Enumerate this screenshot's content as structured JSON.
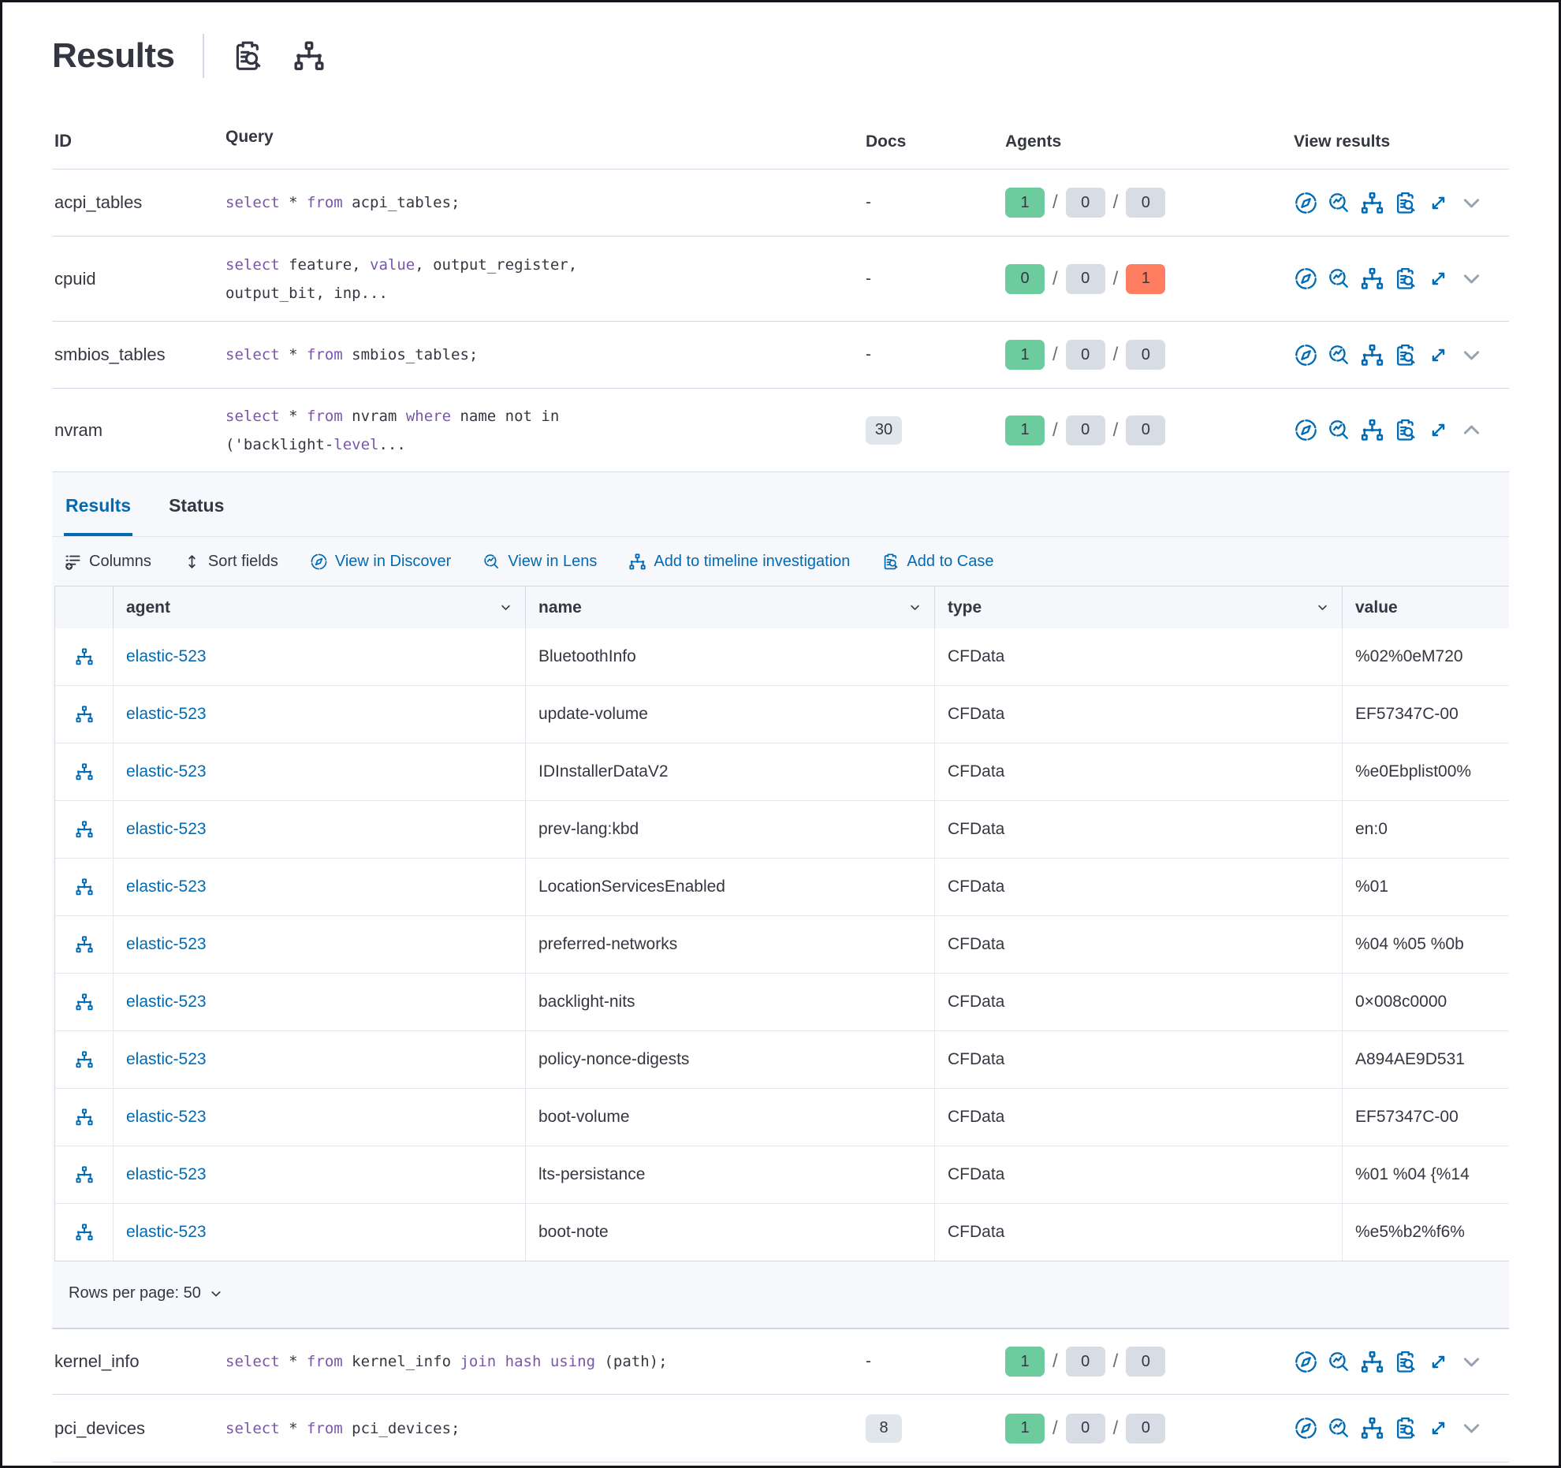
{
  "header": {
    "title": "Results",
    "icons": [
      {
        "name": "inspect-icon"
      },
      {
        "name": "node-tree-icon"
      }
    ]
  },
  "colors": {
    "accent_blue": "#006bb4",
    "keyword_purple": "#7957a8",
    "success_green": "#6dcc9e",
    "neutral_gray": "#d8dce5",
    "danger_red": "#ff7e62",
    "text_dark": "#343741"
  },
  "table": {
    "columns": {
      "id": "ID",
      "query": "Query",
      "docs": "Docs",
      "agents": "Agents",
      "view": "View results"
    },
    "agents_separator": "/",
    "rows_top": [
      {
        "id": "acpi_tables",
        "query": [
          [
            {
              "t": "select",
              "kw": true
            },
            {
              "t": " * "
            },
            {
              "t": "from",
              "kw": true
            },
            {
              "t": " acpi_tables;"
            }
          ]
        ],
        "docs": {
          "text": "-",
          "badge": false
        },
        "agents": [
          {
            "v": "1",
            "c": "ok"
          },
          {
            "v": "0",
            "c": "na"
          },
          {
            "v": "0",
            "c": "na"
          }
        ],
        "chevron": "down"
      },
      {
        "id": "cpuid",
        "query": [
          [
            {
              "t": "select",
              "kw": true
            },
            {
              "t": " feature, "
            },
            {
              "t": "value",
              "kw": true
            },
            {
              "t": ", output_register,"
            }
          ],
          [
            {
              "t": "output_bit, inp..."
            }
          ]
        ],
        "docs": {
          "text": "-",
          "badge": false
        },
        "agents": [
          {
            "v": "0",
            "c": "ok"
          },
          {
            "v": "0",
            "c": "na"
          },
          {
            "v": "1",
            "c": "fail"
          }
        ],
        "chevron": "down"
      },
      {
        "id": "smbios_tables",
        "query": [
          [
            {
              "t": "select",
              "kw": true
            },
            {
              "t": " * "
            },
            {
              "t": "from",
              "kw": true
            },
            {
              "t": " smbios_tables;"
            }
          ]
        ],
        "docs": {
          "text": "-",
          "badge": false
        },
        "agents": [
          {
            "v": "1",
            "c": "ok"
          },
          {
            "v": "0",
            "c": "na"
          },
          {
            "v": "0",
            "c": "na"
          }
        ],
        "chevron": "down"
      },
      {
        "id": "nvram",
        "query": [
          [
            {
              "t": "select",
              "kw": true
            },
            {
              "t": " * "
            },
            {
              "t": "from",
              "kw": true
            },
            {
              "t": " nvram "
            },
            {
              "t": "where",
              "kw": true
            },
            {
              "t": " name not in"
            }
          ],
          [
            {
              "t": "('backlight-"
            },
            {
              "t": "level",
              "kw": true
            },
            {
              "t": "..."
            }
          ]
        ],
        "docs": {
          "text": "30",
          "badge": true
        },
        "agents": [
          {
            "v": "1",
            "c": "ok"
          },
          {
            "v": "0",
            "c": "na"
          },
          {
            "v": "0",
            "c": "na"
          }
        ],
        "chevron": "up"
      }
    ],
    "rows_bottom": [
      {
        "id": "kernel_info",
        "query": [
          [
            {
              "t": "select",
              "kw": true
            },
            {
              "t": " * "
            },
            {
              "t": "from",
              "kw": true
            },
            {
              "t": " kernel_info "
            },
            {
              "t": "join hash using",
              "kw": true
            },
            {
              "t": " (path);"
            }
          ]
        ],
        "docs": {
          "text": "-",
          "badge": false
        },
        "agents": [
          {
            "v": "1",
            "c": "ok"
          },
          {
            "v": "0",
            "c": "na"
          },
          {
            "v": "0",
            "c": "na"
          }
        ],
        "chevron": "down"
      },
      {
        "id": "pci_devices",
        "query": [
          [
            {
              "t": "select",
              "kw": true
            },
            {
              "t": " * "
            },
            {
              "t": "from",
              "kw": true
            },
            {
              "t": " pci_devices;"
            }
          ]
        ],
        "docs": {
          "text": "8",
          "badge": true
        },
        "agents": [
          {
            "v": "1",
            "c": "ok"
          },
          {
            "v": "0",
            "c": "na"
          },
          {
            "v": "0",
            "c": "na"
          }
        ],
        "chevron": "down"
      }
    ]
  },
  "panel": {
    "tabs": [
      {
        "label": "Results",
        "active": true
      },
      {
        "label": "Status",
        "active": false
      }
    ],
    "toolbar": [
      {
        "label": "Columns",
        "icon": "columns-icon",
        "style": "plain"
      },
      {
        "label": "Sort fields",
        "icon": "sort-icon",
        "style": "plain"
      },
      {
        "label": "View in Discover",
        "icon": "compass-icon",
        "style": "link"
      },
      {
        "label": "View in Lens",
        "icon": "lens-icon",
        "style": "link"
      },
      {
        "label": "Add to timeline investigation",
        "icon": "node-tree-icon",
        "style": "link"
      },
      {
        "label": "Add to Case",
        "icon": "inspect-icon",
        "style": "link"
      }
    ],
    "grid": {
      "columns": [
        {
          "label": "agent",
          "chevron": true
        },
        {
          "label": "name",
          "chevron": true
        },
        {
          "label": "type",
          "chevron": true
        },
        {
          "label": "value",
          "chevron": false
        }
      ],
      "rows": [
        {
          "agent": "elastic-523",
          "name": "BluetoothInfo",
          "type": "CFData",
          "value": "%02%0eM720"
        },
        {
          "agent": "elastic-523",
          "name": "update-volume",
          "type": "CFData",
          "value": "EF57347C-00"
        },
        {
          "agent": "elastic-523",
          "name": "IDInstallerDataV2",
          "type": "CFData",
          "value": "%e0Ebplist00%"
        },
        {
          "agent": "elastic-523",
          "name": "prev-lang:kbd",
          "type": "CFData",
          "value": "en:0"
        },
        {
          "agent": "elastic-523",
          "name": "LocationServicesEnabled",
          "type": "CFData",
          "value": "%01"
        },
        {
          "agent": "elastic-523",
          "name": "preferred-networks",
          "type": "CFData",
          "value": "%04 %05 %0b"
        },
        {
          "agent": "elastic-523",
          "name": "backlight-nits",
          "type": "CFData",
          "value": "0×008c0000"
        },
        {
          "agent": "elastic-523",
          "name": "policy-nonce-digests",
          "type": "CFData",
          "value": "A894AE9D531"
        },
        {
          "agent": "elastic-523",
          "name": "boot-volume",
          "type": "CFData",
          "value": "EF57347C-00"
        },
        {
          "agent": "elastic-523",
          "name": "lts-persistance",
          "type": "CFData",
          "value": "%01 %04 {%14"
        },
        {
          "agent": "elastic-523",
          "name": "boot-note",
          "type": "CFData",
          "value": "%e5%b2%f6%"
        }
      ]
    },
    "footer": {
      "rows_per_page_label": "Rows per page: 50"
    }
  }
}
